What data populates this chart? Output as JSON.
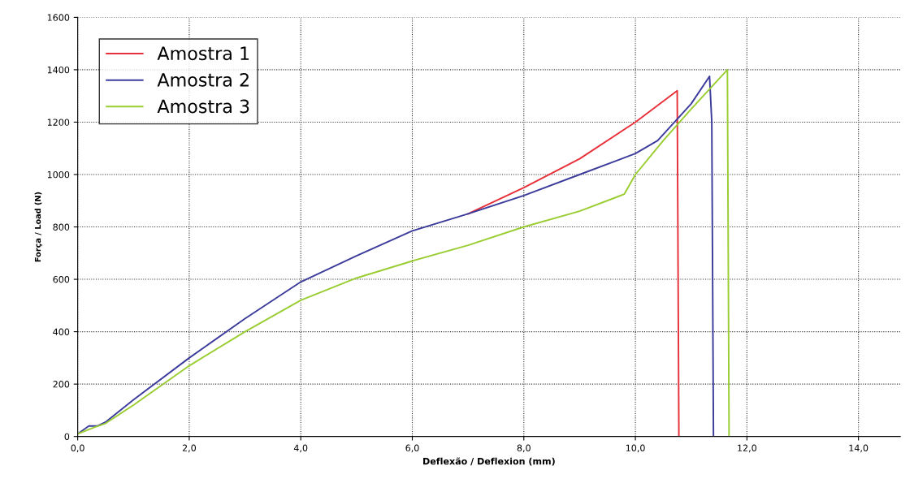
{
  "chart_data": {
    "type": "line",
    "xlabel": "Deflexão / Deflexion (mm)",
    "ylabel": "Força / Load (N)",
    "xlim": [
      0,
      14.75
    ],
    "ylim": [
      0,
      1600
    ],
    "xticks": [
      {
        "value": 0,
        "label": "0,0"
      },
      {
        "value": 2,
        "label": "2,0"
      },
      {
        "value": 4,
        "label": "4,0"
      },
      {
        "value": 6,
        "label": "6,0"
      },
      {
        "value": 8,
        "label": "8,0"
      },
      {
        "value": 10,
        "label": "10,0"
      },
      {
        "value": 12,
        "label": "12,0"
      },
      {
        "value": 14,
        "label": "14,0"
      }
    ],
    "yticks": [
      0,
      200,
      400,
      600,
      800,
      1000,
      1200,
      1400,
      1600
    ],
    "grid": true,
    "legend": "top left",
    "line_style": "solid",
    "series": [
      {
        "name": "Amostra 1",
        "color": "#e8303a",
        "x": [
          7,
          8,
          9,
          10,
          10.75,
          10.78
        ],
        "values": [
          850,
          950,
          1060,
          1200,
          1320,
          0
        ]
      },
      {
        "name": "Amostra 2",
        "color": "#3c3c9c",
        "x": [
          0,
          0.2,
          0.35,
          0.5,
          1,
          2,
          3,
          4,
          5,
          6,
          7,
          8,
          9,
          10,
          10.4,
          11.0,
          11.33,
          11.37,
          11.4
        ],
        "values": [
          10,
          40,
          40,
          55,
          140,
          300,
          450,
          590,
          690,
          785,
          850,
          920,
          1000,
          1080,
          1130,
          1270,
          1375,
          1200,
          0
        ]
      },
      {
        "name": "Amostra 3",
        "color": "#9acd32",
        "x": [
          0,
          0.3,
          0.5,
          1,
          2,
          3,
          4,
          5,
          6,
          7,
          8,
          9,
          9.8,
          10.0,
          10.5,
          11.0,
          11.65,
          11.68
        ],
        "values": [
          10,
          35,
          50,
          120,
          270,
          400,
          520,
          605,
          670,
          730,
          800,
          860,
          925,
          1000,
          1130,
          1250,
          1400,
          0
        ]
      }
    ]
  }
}
